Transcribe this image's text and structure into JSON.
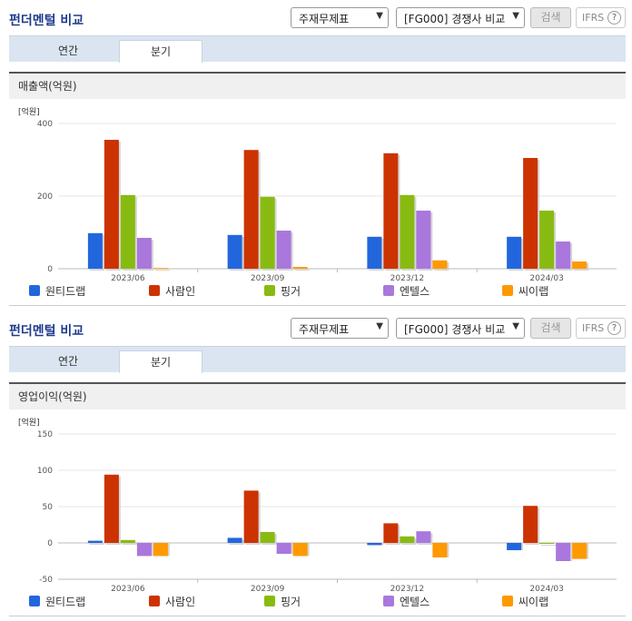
{
  "colors": {
    "series": [
      "#2266dd",
      "#cc3300",
      "#88bb11",
      "#aa77dd",
      "#ff9900"
    ]
  },
  "sections": [
    {
      "title": "펀더멘털 비교",
      "select1": "주재무제표",
      "select2": "[FG000] 경쟁사 비교",
      "search_label": "검색",
      "ifrs_label": "IFRS",
      "help_label": "?",
      "tabs": [
        "연간",
        "분기"
      ],
      "active_tab": "분기",
      "metric_label": "매출액(억원)"
    },
    {
      "title": "펀더멘털 비교",
      "select1": "주재무제표",
      "select2": "[FG000] 경쟁사 비교",
      "search_label": "검색",
      "ifrs_label": "IFRS",
      "help_label": "?",
      "tabs": [
        "연간",
        "분기"
      ],
      "active_tab": "분기",
      "metric_label": "영업이익(억원)"
    }
  ],
  "chart_data": [
    {
      "type": "bar",
      "unit_label": "[억원]",
      "categories": [
        "2023/06",
        "2023/09",
        "2023/12",
        "2024/03"
      ],
      "ylim": [
        0,
        400
      ],
      "yticks": [
        0,
        200,
        400
      ],
      "grid": true,
      "legend_position": "bottom",
      "series": [
        {
          "name": "원티드랩",
          "values": [
            98,
            93,
            88,
            88
          ]
        },
        {
          "name": "사람인",
          "values": [
            355,
            327,
            318,
            305
          ]
        },
        {
          "name": "핑거",
          "values": [
            203,
            198,
            203,
            160
          ]
        },
        {
          "name": "엔텔스",
          "values": [
            85,
            105,
            160,
            75
          ]
        },
        {
          "name": "씨이랩",
          "values": [
            2,
            5,
            23,
            20
          ]
        }
      ]
    },
    {
      "type": "bar",
      "unit_label": "[억원]",
      "categories": [
        "2023/06",
        "2023/09",
        "2023/12",
        "2024/03"
      ],
      "ylim": [
        -50,
        150
      ],
      "yticks": [
        -50,
        0,
        50,
        100,
        150
      ],
      "grid": true,
      "legend_position": "bottom",
      "series": [
        {
          "name": "원티드랩",
          "values": [
            3,
            7,
            -3,
            -10
          ]
        },
        {
          "name": "사람인",
          "values": [
            94,
            72,
            27,
            51
          ]
        },
        {
          "name": "핑거",
          "values": [
            4,
            15,
            9,
            0
          ]
        },
        {
          "name": "엔텔스",
          "values": [
            -18,
            -15,
            16,
            -25
          ]
        },
        {
          "name": "씨이랩",
          "values": [
            -18,
            -18,
            -20,
            -22
          ]
        }
      ]
    }
  ]
}
